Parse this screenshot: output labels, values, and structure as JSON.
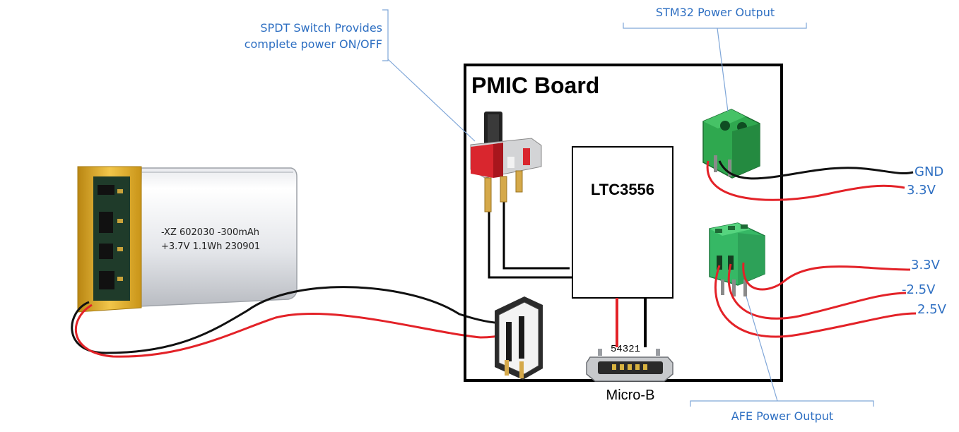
{
  "board": {
    "title": "PMIC Board"
  },
  "chip": {
    "label": "LTC3556"
  },
  "battery": {
    "line1": "-XZ 602030 -300mAh",
    "line2": "+3.7V 1.1Wh 230901"
  },
  "usb": {
    "label": "Micro-B",
    "pins": "54321"
  },
  "callouts": {
    "switch_line1": "SPDT Switch Provides",
    "switch_line2": "complete power ON/OFF",
    "stm32": "STM32 Power Output",
    "afe": "AFE Power Output"
  },
  "outputs": {
    "stm32": [
      "GND",
      "3.3V"
    ],
    "afe": [
      "3.3V",
      "-2.5V",
      "2.5V"
    ]
  },
  "colors": {
    "wire_red": "#E32228",
    "wire_black": "#111111",
    "callout_blue": "#2E6FC2",
    "terminal_green": "#2FA84F",
    "switch_red": "#D9262E",
    "battery_gold": "#D8A21A"
  }
}
